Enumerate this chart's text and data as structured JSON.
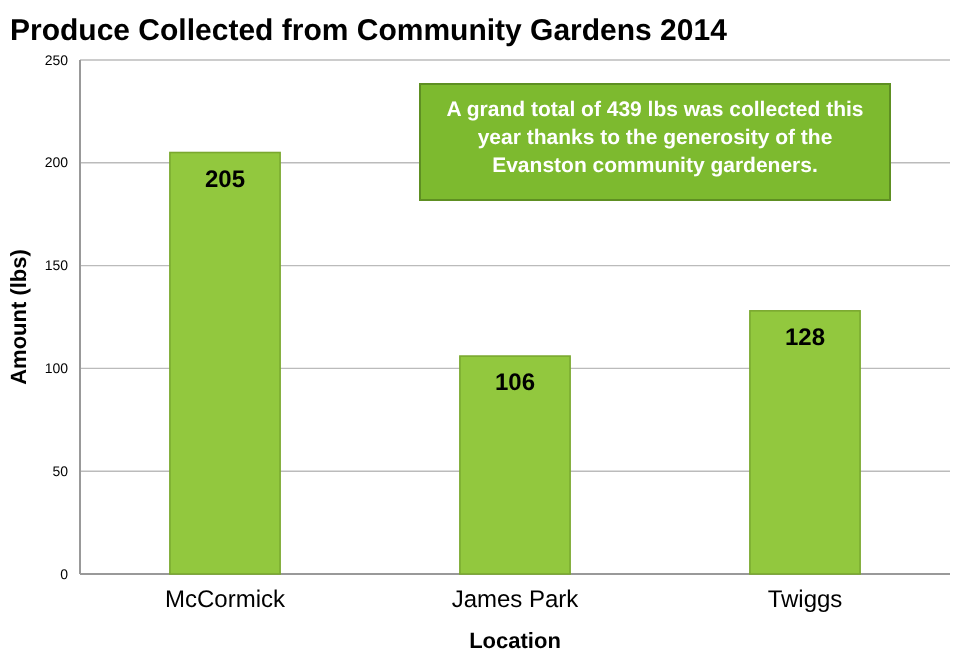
{
  "chart_data": {
    "type": "bar",
    "title": "Produce Collected from Community Gardens 2014",
    "xlabel": "Location",
    "ylabel": "Amount (lbs)",
    "categories": [
      "McCormick",
      "James Park",
      "Twiggs"
    ],
    "values": [
      205,
      106,
      128
    ],
    "color": "#92c83e",
    "ylim": [
      0,
      250
    ],
    "yticks": [
      0,
      50,
      100,
      150,
      200,
      250
    ],
    "grid": "y",
    "data_labels": true,
    "annotations": [
      "A grand total of 439 lbs was collected this year thanks to the generosity of the Evanston community gardeners."
    ]
  }
}
